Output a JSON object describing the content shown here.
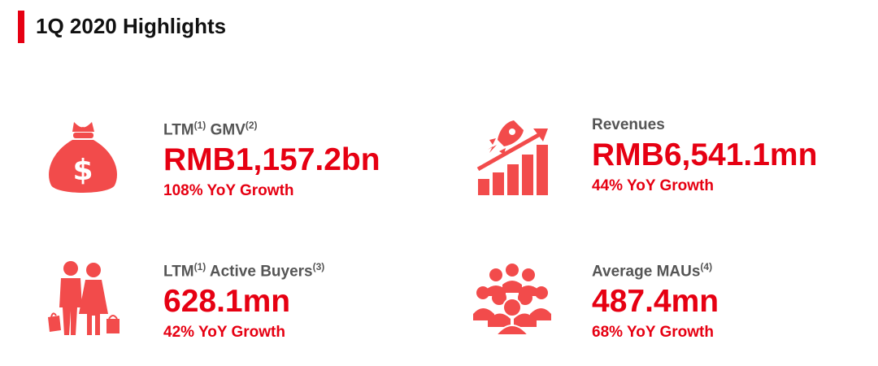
{
  "header": {
    "title": "1Q 2020 Highlights"
  },
  "accent_color": "#e60012",
  "icon_color": "#f24b4b",
  "metrics": [
    {
      "label": "GMV",
      "label_prefix": "LTM",
      "label_sup1": "(1)",
      "label_sup2": "(2)",
      "value": "RMB1,157.2bn",
      "growth": "108% YoY Growth",
      "icon": "money-bag-icon"
    },
    {
      "label": "Revenues",
      "value": "RMB6,541.1mn",
      "growth": "44% YoY Growth",
      "icon": "rocket-growth-chart-icon"
    },
    {
      "label": "Active Buyers",
      "label_prefix": "LTM",
      "label_sup1": "(1)",
      "label_sup2": "(3)",
      "value": "628.1mn",
      "growth": "42% YoY Growth",
      "icon": "shoppers-icon"
    },
    {
      "label": "Average MAUs",
      "label_sup2": "(4)",
      "value": "487.4mn",
      "growth": "68% YoY Growth",
      "icon": "group-of-people-icon"
    }
  ]
}
